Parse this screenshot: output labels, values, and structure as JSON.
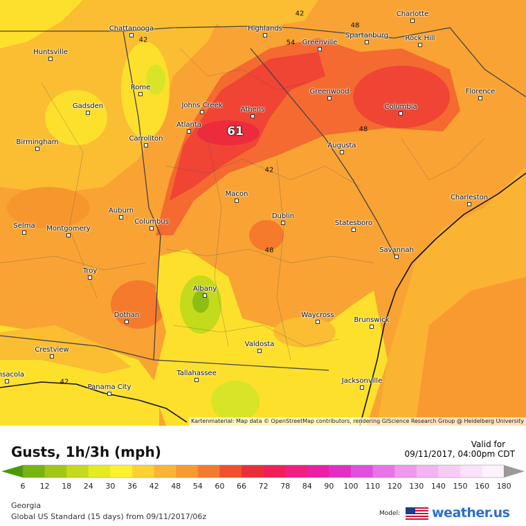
{
  "map": {
    "cities": [
      "Chattanooga",
      "Highlands",
      "Charlotte",
      "Spartanburg",
      "Rock Hill",
      "Greenville",
      "Huntsville",
      "Rome",
      "Greenwood",
      "Florence",
      "Gadsden",
      "Johns Creek",
      "Athens",
      "Columbia",
      "Atlanta",
      "Carrollton",
      "Birmingham",
      "Augusta",
      "Charleston",
      "Macon",
      "Auburn",
      "Dublin",
      "Selma",
      "Montgomery",
      "Columbus",
      "Statesboro",
      "Savannah",
      "Troy",
      "Albany",
      "Dothan",
      "Waycross",
      "Brunswick",
      "Valdosta",
      "Crestview",
      "Tallahassee",
      "Jacksonville",
      "Panama City",
      "Pensacola"
    ],
    "contour_labels": [
      42,
      42,
      48,
      54,
      61,
      42,
      48,
      48,
      42
    ],
    "attribution": "Kartenmaterial: Map data © OpenStreetMap contributors, rendering GIScience Research Group @ Heidelberg University"
  },
  "legend": {
    "title": "Gusts, 1h/3h (mph)",
    "valid_label": "Valid for",
    "valid_time": "09/11/2017, 04:00pm CDT",
    "colorbar": {
      "labels": [
        6,
        12,
        18,
        24,
        30,
        36,
        42,
        48,
        54,
        60,
        66,
        72,
        78,
        84,
        90,
        100,
        110,
        120,
        130,
        140,
        150,
        160,
        180
      ],
      "colors": [
        "#4c9a08",
        "#78b410",
        "#a0c814",
        "#c4da1c",
        "#e4ec20",
        "#fef22c",
        "#fdd22e",
        "#fbb432",
        "#f99a30",
        "#f57a2c",
        "#f0502c",
        "#e8303a",
        "#ee2058",
        "#f02080",
        "#e820a4",
        "#e030c4",
        "#e050dc",
        "#e874e8",
        "#ee98ee",
        "#f2b4f2",
        "#f6ccf6",
        "#fae2fa",
        "#fdf2fd"
      ]
    },
    "region": "Georgia",
    "model_run": "Global US Standard (15 days) from 09/11/2017/06z",
    "model_label": "Model:",
    "brand": "weather.us"
  }
}
